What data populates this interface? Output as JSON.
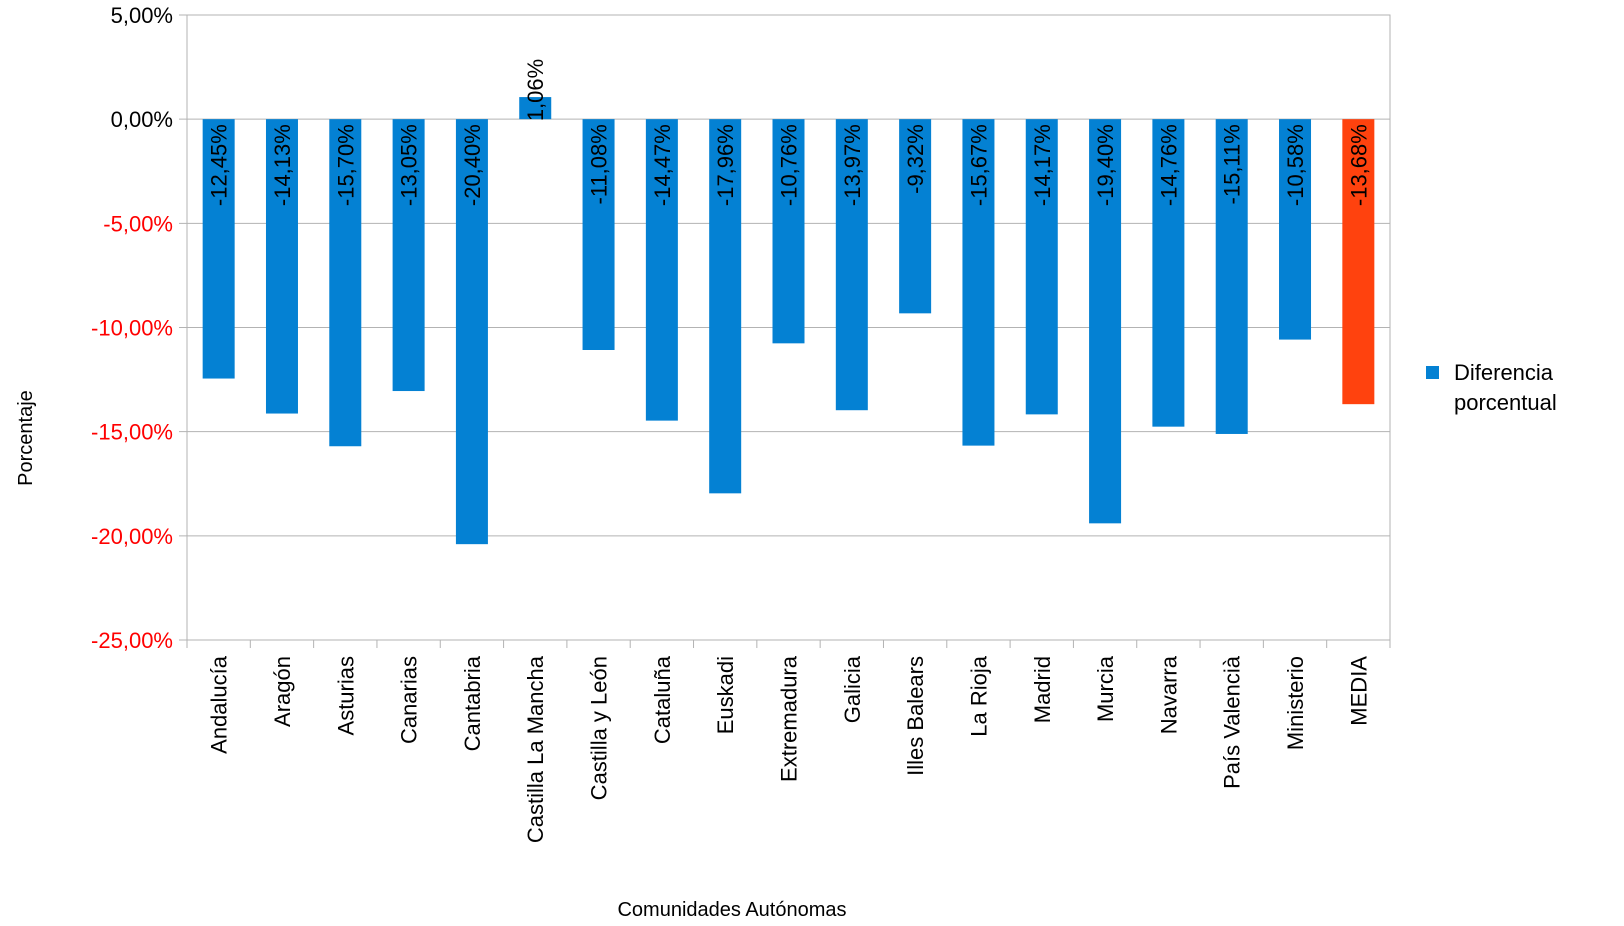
{
  "chart_data": {
    "type": "bar",
    "xlabel": "Comunidades Autónomas",
    "ylabel": "Porcentaje",
    "ylim": [
      -25,
      5
    ],
    "yticks": [
      5,
      0,
      -5,
      -10,
      -15,
      -20,
      -25
    ],
    "ytick_labels": [
      "5,00%",
      "0,00%",
      "-5,00%",
      "-10,00%",
      "-15,00%",
      "-20,00%",
      "-25,00%"
    ],
    "grid": true,
    "legend_position": "right",
    "categories": [
      "Andalucía",
      "Aragón",
      "Asturias",
      "Canarias",
      "Cantabria",
      "Castilla La Mancha",
      "Castilla y León",
      "Cataluña",
      "Euskadi",
      "Extremadura",
      "Galicia",
      "Illes Balears",
      "La Rioja",
      "Madrid",
      "Murcia",
      "Navarra",
      "País Valencià",
      "Ministerio",
      "MEDIA"
    ],
    "series": [
      {
        "name": "Diferencia porcentual",
        "values": [
          -12.45,
          -14.13,
          -15.7,
          -13.05,
          -20.4,
          1.06,
          -11.08,
          -14.47,
          -17.96,
          -10.76,
          -13.97,
          -9.32,
          -15.67,
          -14.17,
          -19.4,
          -14.76,
          -15.11,
          -10.58,
          -13.68
        ],
        "data_labels": [
          "-12,45%",
          "-14,13%",
          "-15,70%",
          "-13,05%",
          "-20,40%",
          "1,06%",
          "-11,08%",
          "-14,47%",
          "-17,96%",
          "-10,76%",
          "-13,97%",
          "-9,32%",
          "-15,67%",
          "-14,17%",
          "-19,40%",
          "-14,76%",
          "-15,11%",
          "-10,58%",
          "-13,68%"
        ]
      }
    ],
    "colors": {
      "bar": "#0481d3",
      "highlight_bar": "#ff420e",
      "highlight_category": "MEDIA",
      "positive_tick": "#000000",
      "negative_tick": "#ff0000",
      "grid": "#b3b3b3"
    },
    "legend": {
      "label_lines": [
        "Diferencia",
        "porcentual"
      ]
    }
  }
}
